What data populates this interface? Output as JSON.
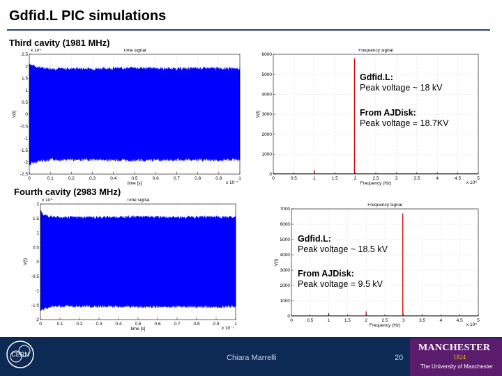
{
  "slide": {
    "title": "Gdfid.L PIC simulations",
    "section_third": "Third cavity (1981 MHz)",
    "section_fourth": "Fourth cavity (2983 MHz)"
  },
  "annotations": {
    "third": {
      "gdfidl_label": "Gdfid.L:",
      "gdfidl_value": "Peak voltage ~  18 kV",
      "ajdisk_label": "From AJDisk:",
      "ajdisk_value": "Peak voltage =  18.7KV"
    },
    "fourth": {
      "gdfidl_label": "Gdfid.L:",
      "gdfidl_value": "Peak voltage ~  18.5 kV",
      "ajdisk_label": "From AJDisk:",
      "ajdisk_value": "Peak voltage =  9.5 kV"
    }
  },
  "footer": {
    "presenter": "Chiara Marrelli",
    "page_number": "20",
    "university_name": "MANCHESTER",
    "university_year": "1824",
    "university_full": "The University of Manchester",
    "cern_logo_text": "CERN"
  },
  "colors": {
    "signal": "#0000ff",
    "spectrum": "#cc0000",
    "footer": "#0d2a55",
    "manchester": "#5b1c6e"
  },
  "chart_data": [
    {
      "id": "third-time",
      "type": "area",
      "title": "Time signal",
      "xlabel": "time [s]",
      "ylabel": "V(t)",
      "xlim": [
        0,
        1
      ],
      "ylim": [
        -2.5,
        2.5
      ],
      "xticks": [
        "0",
        "0.1",
        "0.2",
        "0.3",
        "0.4",
        "0.5",
        "0.6",
        "0.7",
        "0.8",
        "0.9",
        "1"
      ],
      "yticks": [
        "-2.5",
        "-2",
        "-1.5",
        "-1",
        "-0.5",
        "0",
        "0.5",
        "1",
        "1.5",
        "2",
        "2.5"
      ],
      "x_exponent": "x 10⁻⁷",
      "y_exponent": "x 10⁴",
      "series": [
        {
          "x": [
            0,
            0.01,
            0.05,
            0.1,
            0.3,
            0.5,
            0.7,
            0.9,
            1.0
          ],
          "upper": [
            2.2,
            2.1,
            2.0,
            1.95,
            1.95,
            1.98,
            1.95,
            1.97,
            1.95
          ],
          "lower": [
            -2.2,
            -2.1,
            -2.0,
            -1.95,
            -1.95,
            -1.98,
            -1.95,
            -1.97,
            -1.95
          ]
        }
      ]
    },
    {
      "id": "third-freq",
      "type": "line",
      "title": "Frequency signal",
      "xlabel": "Frequency (Hz)",
      "ylabel": "V(f)",
      "xlim": [
        0,
        5
      ],
      "ylim": [
        0,
        6000
      ],
      "xticks": [
        "0",
        "0.5",
        "1",
        "1.5",
        "2",
        "2.5",
        "3",
        "3.5",
        "4",
        "4.5",
        "5"
      ],
      "yticks": [
        "0",
        "1000",
        "2000",
        "3000",
        "4000",
        "5000",
        "6000"
      ],
      "x_exponent": "x 10⁹",
      "series": [
        {
          "x": [
            1.0,
            1.98
          ],
          "y": [
            200,
            5800
          ]
        }
      ]
    },
    {
      "id": "fourth-time",
      "type": "area",
      "title": "Time signal",
      "xlabel": "time [s]",
      "ylabel": "V(t)",
      "xlim": [
        0,
        1
      ],
      "ylim": [
        -2,
        2
      ],
      "xticks": [
        "0",
        "0.1",
        "0.2",
        "0.3",
        "0.4",
        "0.5",
        "0.6",
        "0.7",
        "0.8",
        "0.9",
        "1"
      ],
      "yticks": [
        "-2",
        "-1.5",
        "-1",
        "-0.5",
        "0",
        "0.5",
        "1",
        "1.5",
        "2"
      ],
      "x_exponent": "x 10⁻⁷",
      "y_exponent": "x 10⁴",
      "series": [
        {
          "x": [
            0,
            0.01,
            0.05,
            0.1,
            0.3,
            0.5,
            0.7,
            0.9,
            1.0
          ],
          "upper": [
            1.8,
            1.7,
            1.6,
            1.58,
            1.58,
            1.6,
            1.58,
            1.6,
            1.58
          ],
          "lower": [
            -1.8,
            -1.7,
            -1.6,
            -1.58,
            -1.58,
            -1.6,
            -1.58,
            -1.6,
            -1.58
          ]
        }
      ]
    },
    {
      "id": "fourth-freq",
      "type": "line",
      "title": "Frequency signal",
      "xlabel": "Frequency (Hz)",
      "ylabel": "V(f)",
      "xlim": [
        0,
        5
      ],
      "ylim": [
        0,
        7000
      ],
      "xticks": [
        "0",
        "0.5",
        "1",
        "1.5",
        "2",
        "2.5",
        "3",
        "3.5",
        "4",
        "4.5",
        "5"
      ],
      "yticks": [
        "0",
        "1000",
        "2000",
        "3000",
        "4000",
        "5000",
        "6000",
        "7000"
      ],
      "x_exponent": "x 10⁹",
      "series": [
        {
          "x": [
            1.0,
            2.0,
            2.98
          ],
          "y": [
            200,
            300,
            6700
          ]
        }
      ]
    }
  ]
}
